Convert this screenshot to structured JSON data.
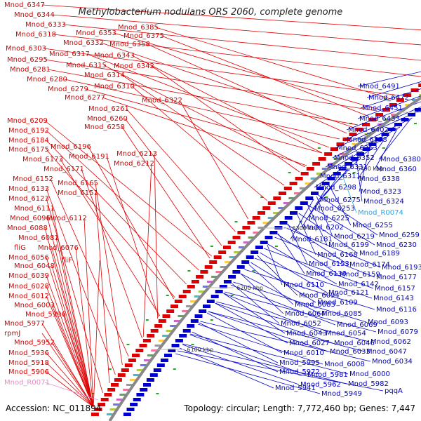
{
  "title": "Methylobacterium nodulans ORS 2060, complete genome",
  "footer": {
    "accession": "Accession: NC_011894",
    "summary": "Topology: circular; Length: 7,772,460 bp; Genes: 7,447"
  },
  "colors": {
    "left_genes": "#dd0000",
    "right_genes": "#0000cc",
    "rna_left": "#ee88cc",
    "rna_right": "#22aaee",
    "backbone": "#888888"
  },
  "kbp_labels": [
    "6600 kbp",
    "6500 kbp",
    "6400 kbp",
    "6300 kbp",
    "6200 kbp",
    "6100 kbp"
  ],
  "left_genes": [
    "Mnod_6347",
    "Mnod_6344",
    "Mnod_6333",
    "Mnod_6318",
    "Mnod_6303",
    "Mnod_6295",
    "Mnod_6281",
    "Mnod_6280",
    "Mnod_6279",
    "Mnod_6277",
    "Mnod_6385",
    "Mnod_6353",
    "Mnod_6375",
    "Mnod_6332",
    "Mnod_6358",
    "Mnod_6317",
    "Mnod_6343",
    "Mnod_6315",
    "Mnod_6342",
    "Mnod_6314",
    "Mnod_6310",
    "Mnod_6322",
    "Mnod_6261",
    "Mnod_6260",
    "Mnod_6258",
    "Mnod_6209",
    "Mnod_6192",
    "Mnod_6184",
    "Mnod_6175",
    "Mnod_6196",
    "Mnod_6173",
    "Mnod_6191",
    "Mnod_6213",
    "Mnod_6171",
    "Mnod_6212",
    "Mnod_6152",
    "Mnod_6165",
    "Mnod_6133",
    "Mnod_6151",
    "Mnod_6123",
    "Mnod_6111",
    "Mnod_6096",
    "Mnod_6112",
    "Mnod_6088",
    "Mnod_6081",
    "fliG",
    "Mnod_6076",
    "Mnod_6056",
    "fliF",
    "Mnod_6048",
    "Mnod_6039",
    "Mnod_6028",
    "Mnod_6012",
    "Mnod_6003",
    "Mnod_5996",
    "Mnod_5977",
    "rpmJ",
    "Mnod_5952",
    "Mnod_5936",
    "Mnod_5918",
    "Mnod_5906"
  ],
  "left_rna": [
    "Mnod_R0071"
  ],
  "right_genes": [
    "Mnod_6491",
    "Mnod_6472",
    "Mnod_6451",
    "Mnod_6433",
    "Mnod_6402",
    "Mnod_6393",
    "Mnod_6363",
    "Mnod_6380",
    "Mnod_6352",
    "Mnod_6360",
    "Mnod_6331",
    "Mnod_6338",
    "Mnod_6311",
    "Mnod_6323",
    "Mnod_6298",
    "Mnod_6324",
    "Mnod_6275",
    "Mnod_6253",
    "Mnod_6225",
    "Mnod_6255",
    "Mnod_6202",
    "Mnod_6259",
    "Mnod_6219",
    "Mnod_6181",
    "Mnod_6230",
    "Mnod_6199",
    "Mnod_6189",
    "Mnod_6168",
    "Mnod_6174",
    "Mnod_6153",
    "Mnod_6193",
    "Mnod_6130",
    "Mnod_6159",
    "Mnod_6177",
    "Mnod_6142",
    "Mnod_6110",
    "Mnod_6157",
    "Mnod_6121",
    "Mnod_6094",
    "Mnod_6143",
    "Mnod_6109",
    "Mnod_6083",
    "Mnod_6116",
    "Mnod_6064",
    "Mnod_6085",
    "Mnod_6093",
    "Mnod_6052",
    "Mnod_6069",
    "Mnod_6079",
    "Mnod_6043",
    "Mnod_6054",
    "Mnod_6062",
    "Mnod_6027",
    "Mnod_6046",
    "Mnod_6047",
    "Mnod_6010",
    "Mnod_6033",
    "Mnod_6034",
    "Mnod_5995",
    "Mnod_6008",
    "Mnod_5981",
    "Mnod_6000",
    "Mnod_5972",
    "Mnod_5982",
    "Mnod_5962",
    "pqqA",
    "Mnod_5941",
    "Mnod_5949"
  ],
  "right_rna": [
    "Mnod_R0074"
  ]
}
